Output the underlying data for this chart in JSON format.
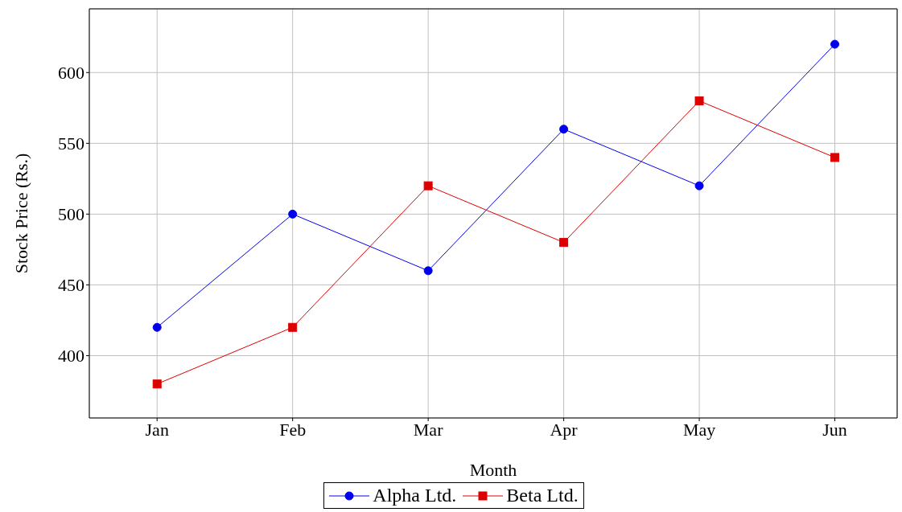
{
  "chart_data": {
    "type": "line",
    "xlabel": "Month",
    "ylabel": "Stock Price (Rs.)",
    "categories": [
      "Jan",
      "Feb",
      "Mar",
      "Apr",
      "May",
      "Jun"
    ],
    "series": [
      {
        "name": "Alpha Ltd.",
        "color": "#0000ee",
        "marker": "circle",
        "values": [
          420,
          500,
          460,
          560,
          520,
          620
        ]
      },
      {
        "name": "Beta Ltd.",
        "color": "#dd0000",
        "marker": "square",
        "values": [
          380,
          420,
          520,
          480,
          580,
          540
        ]
      }
    ],
    "ylim": [
      356,
      645
    ],
    "yticks": [
      400,
      450,
      500,
      550,
      600
    ],
    "grid": true,
    "legend": "bottom"
  }
}
